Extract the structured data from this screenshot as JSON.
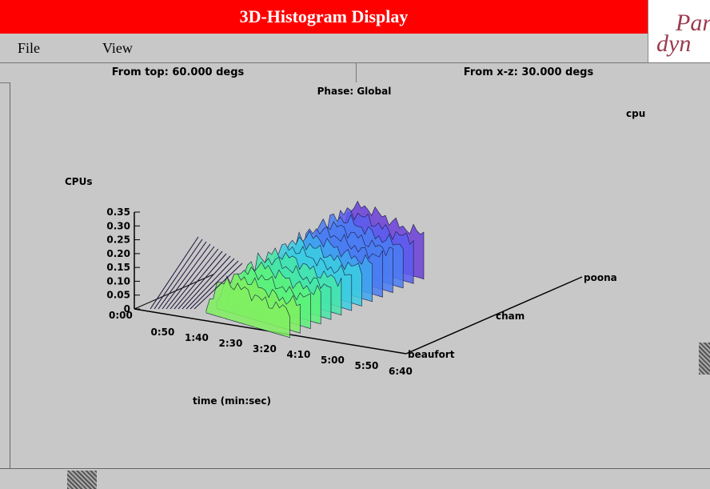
{
  "window": {
    "title": "3D-Histogram Display"
  },
  "logo": {
    "text_top": "Para",
    "text_bottom": "dyn"
  },
  "menu": [
    {
      "label": "File"
    },
    {
      "label": "View"
    }
  ],
  "view_angles": {
    "from_top": "From top: 60.000 degs",
    "from_xz": "From x-z: 30.000 degs"
  },
  "chart": {
    "phase": "Phase: Global",
    "metric_label": "cpu",
    "y_axis_title": "CPUs",
    "x_axis_title": "time (min:sec)",
    "y_ticks": [
      "0.35",
      "0.30",
      "0.25",
      "0.20",
      "0.15",
      "0.10",
      "0.05",
      "0"
    ],
    "x_ticks": [
      "0:00",
      "0:50",
      "1:40",
      "2:30",
      "3:20",
      "4:10",
      "5:00",
      "5:50",
      "6:40"
    ],
    "z_labels": [
      "beaufort",
      "cham",
      "poona"
    ]
  },
  "colors": {
    "title_bar": "#ff0000",
    "background": "#c8c8c8"
  },
  "chart_data": {
    "type": "area",
    "title": "Phase: Global",
    "xlabel": "time (min:sec)",
    "ylabel": "CPUs",
    "zlabel": "",
    "ylim": [
      0,
      0.35
    ],
    "x": [
      "0:00",
      "0:50",
      "1:40",
      "2:30",
      "3:20",
      "4:10",
      "5:00",
      "5:50",
      "6:40"
    ],
    "z_categories": [
      "beaufort",
      "cham",
      "poona"
    ],
    "series": [
      {
        "name": "cpu",
        "values": [
          0,
          0.12,
          0.13,
          0.13,
          0.12,
          0.11,
          0.1,
          0.1,
          0.1
        ]
      }
    ],
    "view": {
      "from_top_degs": 60.0,
      "from_xz_degs": 30.0
    }
  }
}
